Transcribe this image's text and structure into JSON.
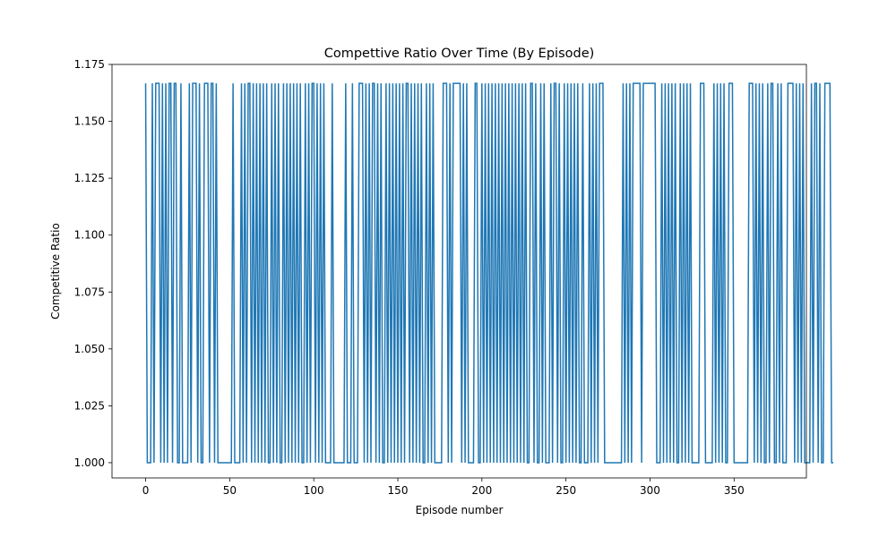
{
  "chart_data": {
    "type": "line",
    "title": "Compettive Ratio Over Time (By Episode)",
    "xlabel": "Episode number",
    "ylabel": "Competitive Ratio",
    "xlim": [
      -20,
      393
    ],
    "ylim": [
      0.9933,
      1.175
    ],
    "x_ticks": [
      0,
      50,
      100,
      150,
      200,
      250,
      300,
      350
    ],
    "y_ticks": [
      1.0,
      1.025,
      1.05,
      1.075,
      1.1,
      1.125,
      1.15,
      1.175
    ],
    "x_tick_labels": [
      "0",
      "50",
      "100",
      "150",
      "200",
      "250",
      "300",
      "350"
    ],
    "y_tick_labels": [
      "1.000",
      "1.025",
      "1.050",
      "1.075",
      "1.100",
      "1.125",
      "1.150",
      "1.175"
    ],
    "grid": false,
    "line_color": "#1f77b4",
    "series": [
      {
        "name": "competitive_ratio",
        "x_start": 0,
        "step": 1,
        "values": [
          1.1667,
          1,
          1,
          1,
          1.1667,
          1,
          1.1667,
          1.1667,
          1.1667,
          1,
          1.1667,
          1,
          1.1667,
          1,
          1.1667,
          1.1667,
          1,
          1.1667,
          1.1667,
          1,
          1,
          1.1667,
          1,
          1,
          1,
          1,
          1.1667,
          1,
          1.1667,
          1.1667,
          1.1667,
          1,
          1.1667,
          1,
          1,
          1.1667,
          1.1667,
          1.1667,
          1,
          1.1667,
          1.1667,
          1,
          1.1667,
          1,
          1,
          1,
          1,
          1,
          1,
          1,
          1,
          1,
          1.1667,
          1,
          1,
          1,
          1,
          1.1667,
          1,
          1.1667,
          1,
          1.1667,
          1.1667,
          1,
          1.1667,
          1,
          1.1667,
          1,
          1.1667,
          1,
          1.1667,
          1,
          1.1667,
          1,
          1,
          1.1667,
          1,
          1.1667,
          1,
          1.1667,
          1,
          1,
          1.1667,
          1,
          1.1667,
          1,
          1.1667,
          1,
          1.1667,
          1,
          1.1667,
          1,
          1.1667,
          1,
          1,
          1.1667,
          1,
          1.1667,
          1,
          1.1667,
          1.1667,
          1,
          1.1667,
          1,
          1.1667,
          1,
          1.1667,
          1,
          1,
          1,
          1,
          1.1667,
          1,
          1,
          1,
          1,
          1,
          1,
          1,
          1.1667,
          1,
          1,
          1,
          1.1667,
          1,
          1,
          1,
          1.1667,
          1.1667,
          1.1667,
          1,
          1.1667,
          1,
          1.1667,
          1,
          1.1667,
          1.1667,
          1,
          1.1667,
          1,
          1.1667,
          1,
          1,
          1.1667,
          1,
          1.1667,
          1,
          1.1667,
          1,
          1.1667,
          1,
          1.1667,
          1,
          1.1667,
          1,
          1.1667,
          1.1667,
          1,
          1.1667,
          1,
          1.1667,
          1,
          1.1667,
          1,
          1.1667,
          1,
          1,
          1.1667,
          1,
          1.1667,
          1,
          1.1667,
          1,
          1,
          1,
          1,
          1,
          1.1667,
          1.1667,
          1.1667,
          1,
          1.1667,
          1,
          1.1667,
          1.1667,
          1.1667,
          1.1667,
          1.1667,
          1,
          1.1667,
          1,
          1.1667,
          1,
          1,
          1,
          1,
          1.1667,
          1.1667,
          1,
          1,
          1.1667,
          1,
          1.1667,
          1,
          1.1667,
          1,
          1.1667,
          1,
          1.1667,
          1,
          1.1667,
          1,
          1.1667,
          1,
          1.1667,
          1,
          1.1667,
          1,
          1.1667,
          1,
          1.1667,
          1,
          1.1667,
          1,
          1.1667,
          1,
          1.1667,
          1,
          1,
          1.1667,
          1.1667,
          1,
          1.1667,
          1,
          1,
          1.1667,
          1,
          1.1667,
          1,
          1,
          1,
          1.1667,
          1,
          1.1667,
          1.1667,
          1,
          1.1667,
          1,
          1,
          1.1667,
          1,
          1.1667,
          1,
          1.1667,
          1,
          1.1667,
          1,
          1.1667,
          1,
          1,
          1.1667,
          1,
          1,
          1,
          1.1667,
          1,
          1.1667,
          1,
          1.1667,
          1,
          1.1667,
          1.1667,
          1.1667,
          1,
          1,
          1,
          1,
          1,
          1,
          1,
          1,
          1,
          1,
          1,
          1.1667,
          1,
          1.1667,
          1,
          1.1667,
          1,
          1.1667,
          1.1667,
          1.1667,
          1.1667,
          1.1667,
          1,
          1.1667,
          1.1667,
          1.1667,
          1.1667,
          1.1667,
          1.1667,
          1.1667,
          1.1667,
          1,
          1,
          1,
          1.1667,
          1,
          1.1667,
          1,
          1.1667,
          1,
          1.1667,
          1,
          1.1667,
          1,
          1,
          1.1667,
          1,
          1.1667,
          1,
          1.1667,
          1,
          1.1667,
          1,
          1,
          1,
          1,
          1,
          1.1667,
          1.1667,
          1.1667,
          1,
          1,
          1,
          1,
          1,
          1.1667,
          1,
          1.1667,
          1,
          1.1667,
          1,
          1.1667,
          1,
          1,
          1.1667,
          1.1667,
          1.1667,
          1,
          1,
          1,
          1,
          1,
          1,
          1,
          1,
          1,
          1.1667,
          1.1667,
          1.1667,
          1,
          1.1667,
          1,
          1.1667,
          1,
          1.1667,
          1,
          1,
          1.1667,
          1,
          1.1667,
          1.1667,
          1,
          1,
          1.1667,
          1,
          1.1667,
          1,
          1,
          1,
          1.1667,
          1.1667,
          1.1667,
          1.1667,
          1,
          1.1667,
          1,
          1.1667,
          1,
          1.1667,
          1,
          1,
          1,
          1,
          1.1667,
          1,
          1.1667,
          1.1667,
          1,
          1.1667,
          1,
          1,
          1.1667,
          1.1667,
          1.1667,
          1.1667,
          1,
          1
        ]
      }
    ]
  }
}
